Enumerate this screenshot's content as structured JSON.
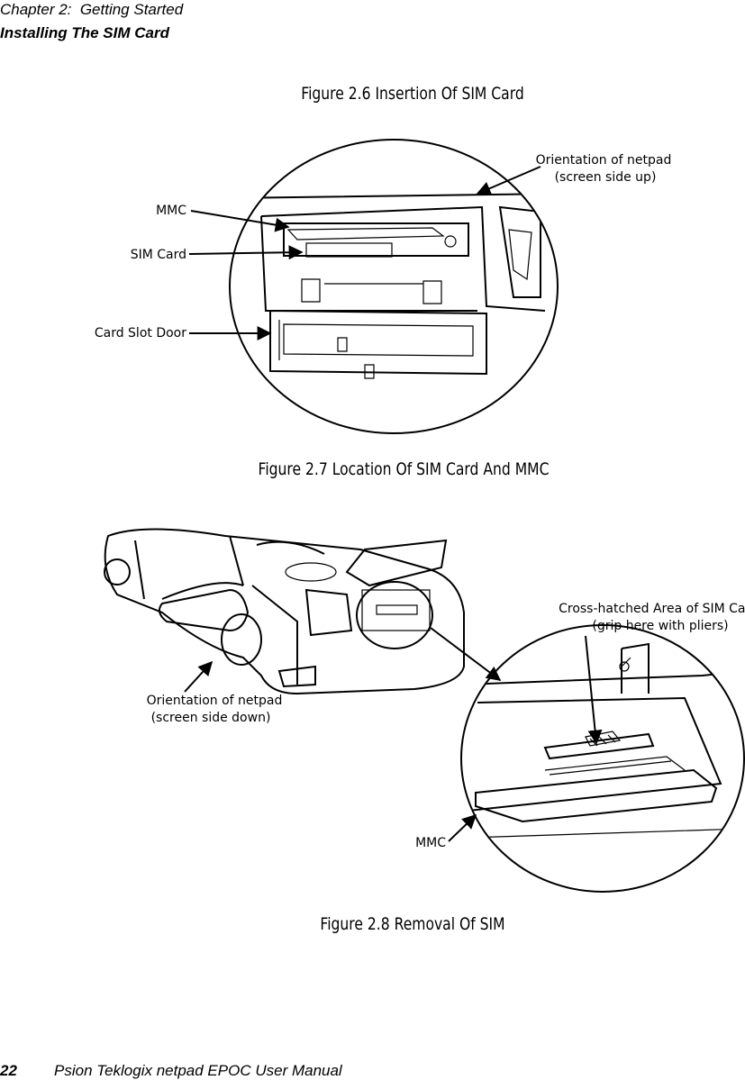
{
  "header": {
    "chapter": "Chapter 2:  Getting Started",
    "section": "Installing The SIM Card"
  },
  "figures": [
    {
      "caption": "Figure 2.6 Insertion Of SIM Card"
    },
    {
      "caption": "Figure 2.7 Location Of SIM Card And MMC",
      "labels": [
        "Orientation of netpad",
        "(screen side up)",
        "MMC",
        "SIM Card",
        "Card Slot Door"
      ]
    },
    {
      "caption": "Figure 2.8 Removal Of SIM",
      "labels": [
        "Cross-hatched Area of SIM Card",
        "(grip here with pliers)",
        "Orientation of netpad",
        "(screen side down)",
        "MMC"
      ]
    }
  ],
  "footer": {
    "page": "22",
    "title": "Psion Teklogix netpad EPOC User Manual"
  }
}
